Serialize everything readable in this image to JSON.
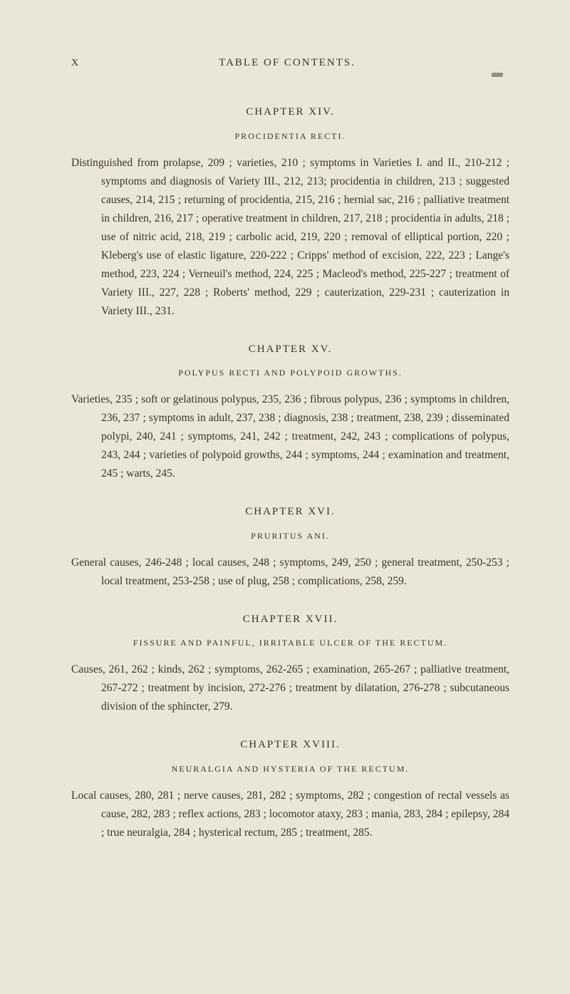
{
  "page": {
    "number": "X",
    "running_title": "TABLE OF CONTENTS."
  },
  "chapters": [
    {
      "heading": "CHAPTER XIV.",
      "subtitle": "PROCIDENTIA RECTI.",
      "body": "Distinguished from prolapse, 209 ; varieties, 210 ; symptoms in Varieties I. and II., 210-212 ; symptoms and diagnosis of Variety III., 212, 213; procidentia in children, 213 ; suggested causes, 214, 215 ; returning of procidentia, 215, 216 ; hernial sac, 216 ; palliative treatment in children, 216, 217 ; operative treatment in children, 217, 218 ; procidentia in adults, 218 ; use of nitric acid, 218, 219 ; carbolic acid, 219, 220 ; removal of elliptical portion, 220 ; Kleberg's use of elastic ligature, 220-222 ; Cripps' method of excision, 222, 223 ; Lange's method, 223, 224 ; Verneuil's method, 224, 225 ; Macleod's method, 225-227 ; treatment of Variety III., 227, 228 ; Roberts' method, 229 ; cauterization, 229-231 ; cauterization in Variety III., 231."
    },
    {
      "heading": "CHAPTER XV.",
      "subtitle": "POLYPUS RECTI AND POLYPOID GROWTHS.",
      "body": "Varieties, 235 ; soft or gelatinous polypus, 235, 236 ; fibrous polypus, 236 ; symptoms in children, 236, 237 ; symptoms in adult, 237, 238 ; diagnosis, 238 ; treatment, 238, 239 ; disseminated polypi, 240, 241 ; symptoms, 241, 242 ; treatment, 242, 243 ; complications of polypus, 243, 244 ; varieties of polypoid growths, 244 ; symptoms, 244 ; examination and treatment, 245 ; warts, 245."
    },
    {
      "heading": "CHAPTER XVI.",
      "subtitle": "PRURITUS ANI.",
      "body": "General causes, 246-248 ; local causes, 248 ; symptoms, 249, 250 ; general treatment, 250-253 ; local treatment, 253-258 ; use of plug, 258 ; complications, 258, 259."
    },
    {
      "heading": "CHAPTER XVII.",
      "subtitle": "FISSURE AND PAINFUL, IRRITABLE ULCER OF THE RECTUM.",
      "body": "Causes, 261, 262 ; kinds, 262 ; symptoms, 262-265 ; examination, 265-267 ; palliative treatment, 267-272 ; treatment by incision, 272-276 ; treatment by dilatation, 276-278 ; subcutaneous division of the sphincter, 279."
    },
    {
      "heading": "CHAPTER XVIII.",
      "subtitle": "NEURALGIA AND HYSTERIA OF THE RECTUM.",
      "body": "Local causes, 280, 281 ; nerve causes, 281, 282 ; symptoms, 282 ; congestion of rectal vessels as cause, 282, 283 ; reflex actions, 283 ; locomotor ataxy, 283 ; mania, 283, 284 ; epilepsy, 284 ; true neuralgia, 284 ; hysterical rectum, 285 ; treatment, 285."
    }
  ]
}
